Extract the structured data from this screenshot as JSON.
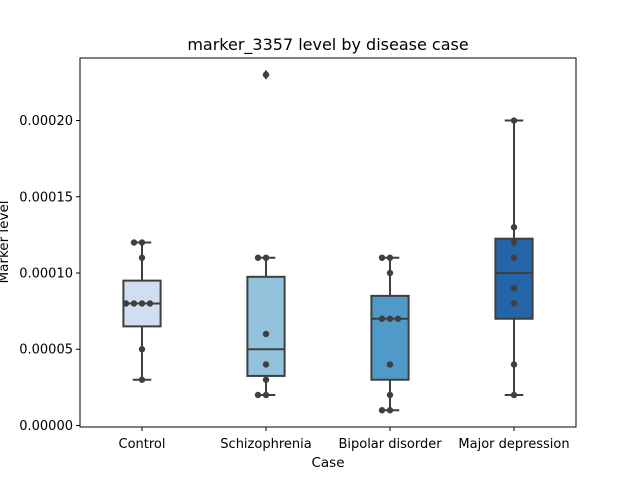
{
  "chart_data": {
    "type": "box",
    "title": "marker_3357 level by disease case",
    "xlabel": "Case",
    "ylabel": "Marker level",
    "ylim": [
      -1e-06,
      0.000241
    ],
    "yticks": [
      "0.00000",
      "0.00005",
      "0.00010",
      "0.00015",
      "0.00020"
    ],
    "ytick_values": [
      0.0,
      5e-05,
      0.0001,
      0.00015,
      0.0002
    ],
    "grid": false,
    "categories": [
      "Control",
      "Schizophrenia",
      "Bipolar disorder",
      "Major depression"
    ],
    "colors": [
      "#cfdef0",
      "#93c2dd",
      "#4f9ac9",
      "#2465a8"
    ],
    "boxes": [
      {
        "q1": 6.5e-05,
        "median": 8e-05,
        "q3": 9.5e-05,
        "whisker_low": 3e-05,
        "whisker_high": 0.00012,
        "outliers": []
      },
      {
        "q1": 3.25e-05,
        "median": 5e-05,
        "q3": 9.75e-05,
        "whisker_low": 2e-05,
        "whisker_high": 0.00011,
        "outliers": [
          0.00023
        ]
      },
      {
        "q1": 3e-05,
        "median": 7e-05,
        "q3": 8.5e-05,
        "whisker_low": 1e-05,
        "whisker_high": 0.00011,
        "outliers": []
      },
      {
        "q1": 7e-05,
        "median": 0.0001,
        "q3": 0.0001225,
        "whisker_low": 2e-05,
        "whisker_high": 0.0002,
        "outliers": []
      }
    ],
    "points": [
      [
        0.00012,
        0.00012,
        0.00011,
        8e-05,
        8e-05,
        8e-05,
        8e-05,
        5e-05,
        3e-05
      ],
      [
        0.00023,
        0.00011,
        0.00011,
        6e-05,
        4e-05,
        3e-05,
        2e-05,
        2e-05
      ],
      [
        0.00011,
        0.00011,
        0.0001,
        7e-05,
        7e-05,
        7e-05,
        4e-05,
        2e-05,
        1e-05,
        1e-05
      ],
      [
        0.0002,
        0.00013,
        0.00012,
        0.00011,
        9e-05,
        8e-05,
        4e-05,
        2e-05
      ]
    ]
  }
}
